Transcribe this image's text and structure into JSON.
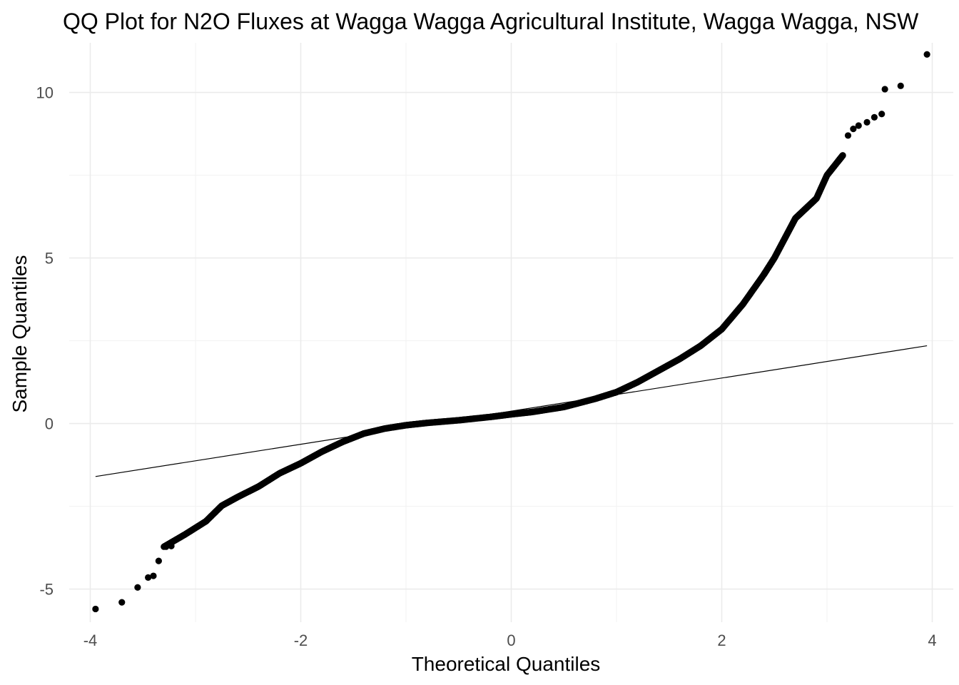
{
  "chart_data": {
    "type": "scatter",
    "title": "QQ Plot for N2O Fluxes at Wagga Wagga Agricultural Institute, Wagga Wagga, NSW",
    "xlabel": "Theoretical Quantiles",
    "ylabel": "Sample Quantiles",
    "xlim": [
      -4.2,
      4.2
    ],
    "ylim": [
      -6.0,
      11.5
    ],
    "x_ticks": [
      -4,
      -2,
      0,
      2,
      4
    ],
    "x_tick_labels": [
      "-4",
      "-2",
      "0",
      "2",
      "4"
    ],
    "y_ticks": [
      -5,
      0,
      5,
      10
    ],
    "y_tick_labels": [
      "-5",
      "0",
      "5",
      "10"
    ],
    "grid": true,
    "reference_line": {
      "x": [
        -3.95,
        3.95
      ],
      "y": [
        -1.6,
        2.35
      ]
    },
    "curve_points": [
      [
        -3.3,
        -3.72
      ],
      [
        -3.1,
        -3.35
      ],
      [
        -2.9,
        -2.95
      ],
      [
        -2.75,
        -2.48
      ],
      [
        -2.6,
        -2.22
      ],
      [
        -2.4,
        -1.9
      ],
      [
        -2.2,
        -1.5
      ],
      [
        -2.0,
        -1.2
      ],
      [
        -1.8,
        -0.85
      ],
      [
        -1.6,
        -0.55
      ],
      [
        -1.4,
        -0.3
      ],
      [
        -1.2,
        -0.15
      ],
      [
        -1.0,
        -0.05
      ],
      [
        -0.8,
        0.02
      ],
      [
        -0.5,
        0.1
      ],
      [
        -0.2,
        0.2
      ],
      [
        0.0,
        0.28
      ],
      [
        0.2,
        0.35
      ],
      [
        0.5,
        0.5
      ],
      [
        0.8,
        0.75
      ],
      [
        1.0,
        0.95
      ],
      [
        1.2,
        1.25
      ],
      [
        1.4,
        1.6
      ],
      [
        1.6,
        1.95
      ],
      [
        1.8,
        2.35
      ],
      [
        2.0,
        2.85
      ],
      [
        2.2,
        3.6
      ],
      [
        2.4,
        4.5
      ],
      [
        2.5,
        5.0
      ],
      [
        2.6,
        5.6
      ],
      [
        2.7,
        6.2
      ],
      [
        2.8,
        6.5
      ],
      [
        2.9,
        6.8
      ],
      [
        3.0,
        7.5
      ],
      [
        3.1,
        7.9
      ],
      [
        3.15,
        8.1
      ]
    ],
    "tail_points": [
      [
        -3.95,
        -5.6
      ],
      [
        -3.7,
        -5.4
      ],
      [
        -3.55,
        -4.95
      ],
      [
        -3.45,
        -4.65
      ],
      [
        -3.4,
        -4.6
      ],
      [
        -3.35,
        -4.15
      ],
      [
        -3.28,
        -3.72
      ],
      [
        -3.23,
        -3.7
      ],
      [
        3.2,
        8.7
      ],
      [
        3.25,
        8.9
      ],
      [
        3.3,
        9.0
      ],
      [
        3.38,
        9.1
      ],
      [
        3.45,
        9.25
      ],
      [
        3.52,
        9.35
      ],
      [
        3.55,
        10.1
      ],
      [
        3.7,
        10.2
      ],
      [
        3.95,
        11.15
      ]
    ]
  }
}
